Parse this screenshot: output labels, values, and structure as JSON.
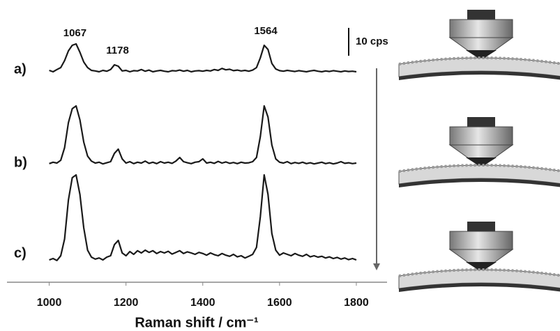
{
  "chart_data": {
    "type": "line",
    "x_label": "Raman shift / cm⁻¹",
    "x": [
      1000,
      1010,
      1020,
      1030,
      1040,
      1050,
      1060,
      1070,
      1080,
      1090,
      1100,
      1110,
      1120,
      1130,
      1140,
      1150,
      1160,
      1170,
      1180,
      1190,
      1200,
      1210,
      1220,
      1230,
      1240,
      1250,
      1260,
      1270,
      1280,
      1290,
      1300,
      1310,
      1320,
      1330,
      1340,
      1350,
      1360,
      1370,
      1380,
      1390,
      1400,
      1410,
      1420,
      1430,
      1440,
      1450,
      1460,
      1470,
      1480,
      1490,
      1500,
      1510,
      1520,
      1530,
      1540,
      1550,
      1560,
      1570,
      1580,
      1590,
      1600,
      1610,
      1620,
      1630,
      1640,
      1650,
      1660,
      1670,
      1680,
      1690,
      1700,
      1710,
      1720,
      1730,
      1740,
      1750,
      1760,
      1770,
      1780,
      1790,
      1800
    ],
    "xlim": [
      890,
      1880
    ],
    "xticks": [
      1000,
      1200,
      1400,
      1600,
      1800
    ],
    "series": [
      {
        "name": "a)",
        "color": "#1a1a1a",
        "values": [
          0.5,
          0,
          0.8,
          1.5,
          4,
          7.5,
          9.5,
          10,
          7,
          3.5,
          1.5,
          0.5,
          0.3,
          0,
          0.5,
          0.2,
          0.8,
          2.5,
          2,
          0.3,
          0.5,
          0,
          0.4,
          0.3,
          0.8,
          0.2,
          0.6,
          0,
          0.3,
          0.5,
          0.2,
          0,
          0.4,
          0.3,
          0.6,
          0.2,
          0.5,
          0,
          0.3,
          0.4,
          0.2,
          0.5,
          0.3,
          0.8,
          0.5,
          1.2,
          0.7,
          0.9,
          0.4,
          0.6,
          0.3,
          0.5,
          0.2,
          0.6,
          1.5,
          5,
          9.5,
          8,
          3,
          1,
          0.4,
          0.2,
          0.5,
          0.3,
          0.1,
          0.4,
          0.2,
          0,
          0.3,
          0.5,
          0.2,
          0,
          0.3,
          0.1,
          0.4,
          0.2,
          0,
          0.3,
          0.1,
          0.2,
          0
        ]
      },
      {
        "name": "b)",
        "color": "#1a1a1a",
        "values": [
          0.3,
          0.8,
          0.5,
          1.5,
          6,
          15,
          20,
          21,
          16,
          8,
          3,
          1.2,
          0.5,
          0.8,
          0.2,
          0.6,
          1,
          4,
          5.5,
          2,
          0.5,
          1,
          0.3,
          0.8,
          0.5,
          1.2,
          0.4,
          0.8,
          0.3,
          1,
          0.5,
          0.8,
          0.4,
          1.2,
          2.5,
          1,
          0.6,
          0.3,
          0.8,
          1,
          2,
          0.5,
          0.8,
          0.4,
          1.1,
          0.5,
          0.9,
          0.4,
          0.7,
          0.3,
          0.8,
          0.5,
          0.6,
          1,
          2.5,
          10,
          21,
          17,
          7,
          2,
          0.8,
          0.5,
          1,
          0.3,
          0.7,
          0.4,
          0.8,
          0.3,
          0.6,
          0.2,
          0.5,
          0.8,
          0.3,
          0.6,
          0.2,
          0.5,
          1,
          0.4,
          0.6,
          0.3,
          0.5
        ]
      },
      {
        "name": "c)",
        "color": "#1a1a1a",
        "values": [
          0.5,
          1,
          0.3,
          2,
          8,
          22,
          30,
          31,
          24,
          12,
          4,
          1.5,
          0.8,
          1.2,
          0.5,
          1.5,
          2,
          6,
          7.5,
          3,
          2,
          3.5,
          2.5,
          3.8,
          3,
          4,
          3.2,
          3.8,
          2.8,
          3.5,
          3,
          3.6,
          2.6,
          3.2,
          3.8,
          2.8,
          3.4,
          3,
          2.5,
          3.2,
          2.8,
          2.2,
          3,
          2.4,
          2,
          2.8,
          2.2,
          1.8,
          2.5,
          1.6,
          2,
          1.2,
          1.8,
          2.5,
          5,
          16,
          31,
          24,
          10,
          4,
          2.2,
          3,
          2.5,
          2,
          2.8,
          2.2,
          1.8,
          2.5,
          1.6,
          2,
          1.5,
          1.8,
          1.2,
          1.6,
          1,
          1.4,
          0.8,
          1.2,
          0.6,
          1,
          0.5
        ]
      }
    ],
    "peak_labels": [
      1067,
      1178,
      1564
    ],
    "scale_bar": {
      "value": 10,
      "label": "10 cps"
    }
  }
}
